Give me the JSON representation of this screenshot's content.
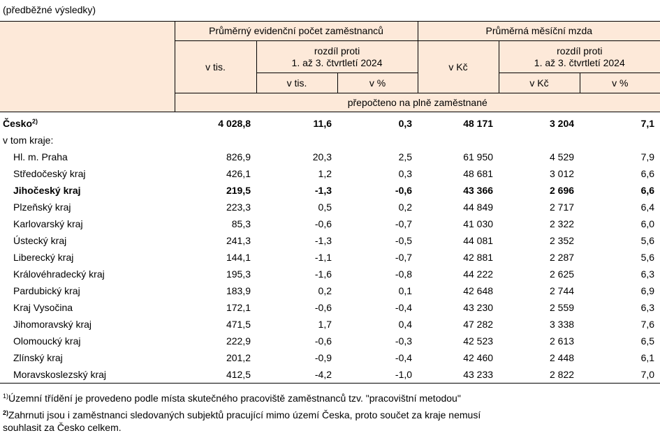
{
  "note": "(předběžné výsledky)",
  "header": {
    "group1": "Průměrný evidenční počet zaměstnanců",
    "group2": "Průměrná měsíční mzda",
    "unit1": "v tis.",
    "diff1": "rozdíl proti\n1. až 3. čtvrtletí 2024",
    "unit2": "v Kč",
    "diff2": "rozdíl proti\n1. až 3. čtvrtletí 2024",
    "sub1a": "v tis.",
    "sub1b": "v %",
    "sub2a": "v Kč",
    "sub2b": "v %",
    "basis": "přepočteno na plně zaměstnané"
  },
  "total": {
    "name": "Česko",
    "sup": "2)",
    "values": [
      "4 028,8",
      "11,6",
      "0,3",
      "48 171",
      "3 204",
      "7,1"
    ],
    "bold": true
  },
  "subheading": "v tom kraje:",
  "regions": [
    {
      "name": "Hl. m. Praha",
      "values": [
        "826,9",
        "20,3",
        "2,5",
        "61 950",
        "4 529",
        "7,9"
      ]
    },
    {
      "name": "Středočeský kraj",
      "values": [
        "426,1",
        "1,2",
        "0,3",
        "48 681",
        "3 012",
        "6,6"
      ]
    },
    {
      "name": "Jihočeský kraj",
      "values": [
        "219,5",
        "-1,3",
        "-0,6",
        "43 366",
        "2 696",
        "6,6"
      ],
      "bold": true
    },
    {
      "name": "Plzeňský kraj",
      "values": [
        "223,3",
        "0,5",
        "0,2",
        "44 849",
        "2 717",
        "6,4"
      ]
    },
    {
      "name": "Karlovarský kraj",
      "values": [
        "85,3",
        "-0,6",
        "-0,7",
        "41 030",
        "2 322",
        "6,0"
      ]
    },
    {
      "name": "Ústecký kraj",
      "values": [
        "241,3",
        "-1,3",
        "-0,5",
        "44 081",
        "2 352",
        "5,6"
      ]
    },
    {
      "name": "Liberecký kraj",
      "values": [
        "144,1",
        "-1,1",
        "-0,7",
        "42 881",
        "2 287",
        "5,6"
      ]
    },
    {
      "name": "Královéhradecký kraj",
      "values": [
        "195,3",
        "-1,6",
        "-0,8",
        "44 222",
        "2 625",
        "6,3"
      ]
    },
    {
      "name": "Pardubický kraj",
      "values": [
        "183,9",
        "0,2",
        "0,1",
        "42 648",
        "2 744",
        "6,9"
      ]
    },
    {
      "name": "Kraj Vysočina",
      "values": [
        "172,1",
        "-0,6",
        "-0,4",
        "43 230",
        "2 559",
        "6,3"
      ]
    },
    {
      "name": "Jihomoravský kraj",
      "values": [
        "471,5",
        "1,7",
        "0,4",
        "47 282",
        "3 338",
        "7,6"
      ]
    },
    {
      "name": "Olomoucký kraj",
      "values": [
        "222,9",
        "-0,6",
        "-0,3",
        "42 523",
        "2 613",
        "6,5"
      ]
    },
    {
      "name": "Zlínský kraj",
      "values": [
        "201,2",
        "-0,9",
        "-0,4",
        "42 460",
        "2 448",
        "6,1"
      ]
    },
    {
      "name": "Moravskoslezský kraj",
      "values": [
        "412,5",
        "-4,2",
        "-1,0",
        "43 233",
        "2 822",
        "7,0"
      ]
    }
  ],
  "footnotes": [
    {
      "mark": "1)",
      "text": "Územní  třídění  je  provedeno  podle  místa skutečného pracoviště zaměstnanců tzv. \"pracovištní metodou\""
    },
    {
      "mark": "2)",
      "text": "Zahrnuti jsou i zaměstnanci sledovaných subjektů pracující mimo území Česka, proto součet za kraje nemusí\nsouhlasit za Česko celkem."
    }
  ]
}
